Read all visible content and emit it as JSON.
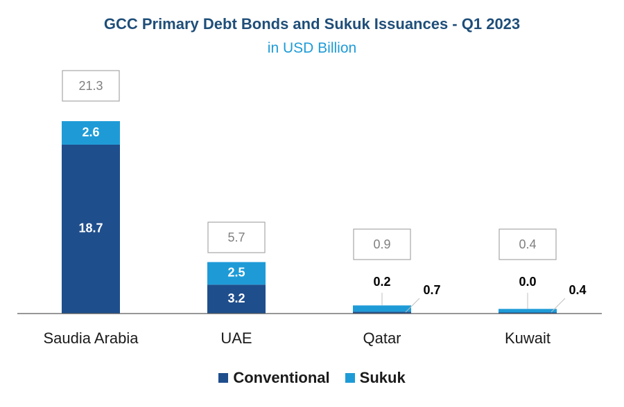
{
  "chart_data": {
    "type": "bar",
    "stacked": true,
    "title": "GCC Primary Debt Bonds and Sukuk Issuances - Q1 2023",
    "subtitle": "in USD Billion",
    "categories": [
      "Saudia Arabia",
      "UAE",
      "Qatar",
      "Kuwait"
    ],
    "series": [
      {
        "name": "Conventional",
        "color": "#1f4e8c",
        "values": [
          18.7,
          3.2,
          0.2,
          0.0
        ]
      },
      {
        "name": "Sukuk",
        "color": "#1e9bd7",
        "values": [
          2.6,
          2.5,
          0.7,
          0.4
        ]
      }
    ],
    "totals": [
      21.3,
      5.7,
      0.9,
      0.4
    ],
    "value_labels": {
      "conventional": [
        "18.7",
        "3.2",
        "0.2",
        "0.0"
      ],
      "sukuk": [
        "2.6",
        "2.5",
        "0.7",
        "0.4"
      ],
      "totals": [
        "21.3",
        "5.7",
        "0.9",
        "0.4"
      ]
    },
    "legend_position": "bottom",
    "grid": false
  }
}
